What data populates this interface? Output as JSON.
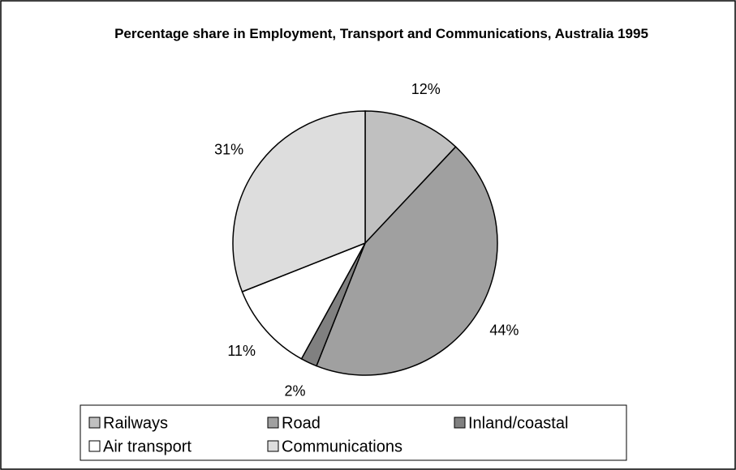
{
  "chart_data": {
    "type": "pie",
    "title": "Percentage share in Employment, Transport and Communications, Australia 1995",
    "categories": [
      "Railways",
      "Road",
      "Inland/coastal",
      "Air transport",
      "Communications"
    ],
    "values": [
      12,
      44,
      2,
      11,
      31
    ],
    "value_labels": [
      "12%",
      "44%",
      "2%",
      "11%",
      "31%"
    ],
    "colors": [
      "#c0c0c0",
      "#a0a0a0",
      "#808080",
      "#ffffff",
      "#dddddd"
    ],
    "legend": "bottom"
  }
}
